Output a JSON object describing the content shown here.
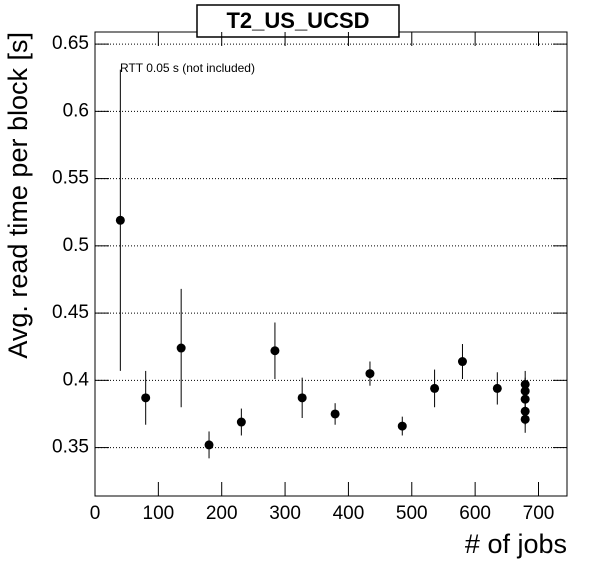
{
  "chart_data": {
    "type": "scatter",
    "title": "T2_US_UCSD",
    "x_label": "# of jobs",
    "y_label": "Avg. read time per block [s]",
    "annotation": "RTT 0.05 s (not included)",
    "x": [
      40,
      80,
      136,
      180,
      231,
      284,
      327,
      379,
      434,
      485,
      536,
      580,
      635,
      679,
      679,
      679,
      679,
      679
    ],
    "values": [
      0.519,
      0.387,
      0.424,
      0.352,
      0.369,
      0.422,
      0.387,
      0.375,
      0.405,
      0.366,
      0.394,
      0.414,
      0.394,
      0.397,
      0.392,
      0.386,
      0.377,
      0.371
    ],
    "errors": [
      0.112,
      0.02,
      0.044,
      0.01,
      0.01,
      0.021,
      0.015,
      0.008,
      0.009,
      0.007,
      0.014,
      0.013,
      0.012,
      0.01,
      0.01,
      0.01,
      0.01,
      0.01
    ],
    "color": "#000000",
    "xlim": [
      0,
      745
    ],
    "ylim": [
      0.314,
      0.659
    ],
    "xticks": [
      0,
      100,
      200,
      300,
      400,
      500,
      600,
      700
    ],
    "yticks": [
      0.35,
      0.4,
      0.45,
      0.5,
      0.55,
      0.6,
      0.65
    ],
    "grid": true
  }
}
